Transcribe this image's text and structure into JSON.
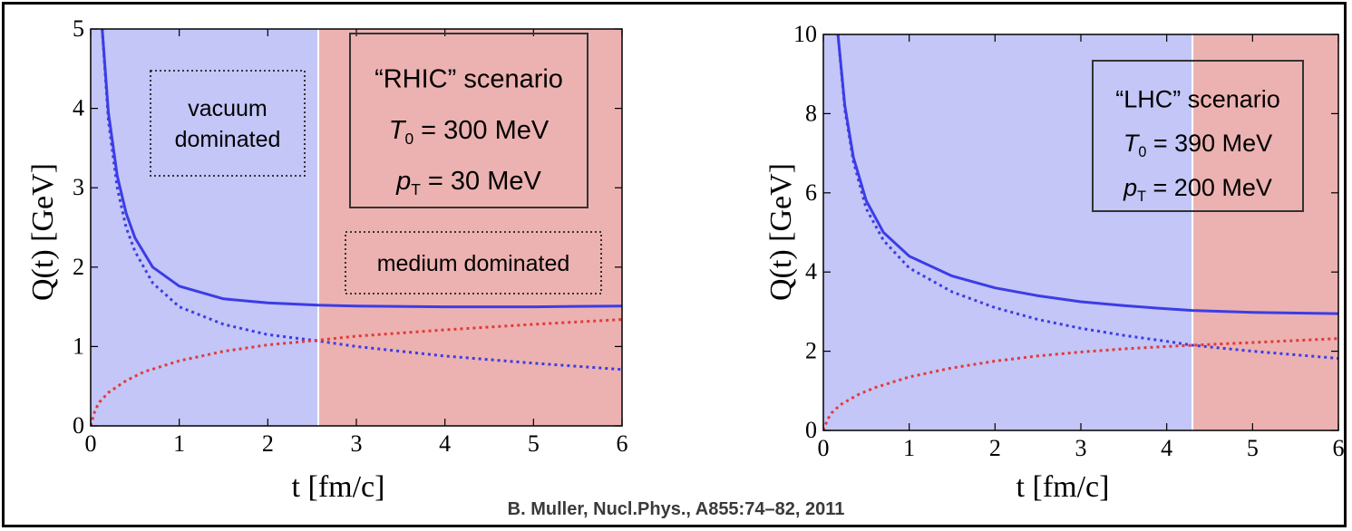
{
  "citation": "B. Muller, Nucl.Phys., A855:74–82, 2011",
  "left_glyph": ")",
  "colors": {
    "vacuum_region": "#c3c6f6",
    "medium_region": "#ecb2b1",
    "vacuum_curve": "#3c3ce6",
    "medium_curve": "#e23a3a"
  },
  "chart_data": [
    {
      "type": "line",
      "title": "",
      "xlabel": "t [fm/c]",
      "ylabel": "Q(t) [GeV]",
      "xlim": [
        0,
        6
      ],
      "ylim": [
        0,
        5
      ],
      "x_ticks": [
        "0",
        "1",
        "2",
        "3",
        "4",
        "5",
        "6"
      ],
      "y_ticks": [
        "0",
        "1",
        "2",
        "3",
        "4",
        "5"
      ],
      "crossover_t": 2.57,
      "regions": [
        {
          "name": "vacuum",
          "from": 0,
          "to": 2.57,
          "color": "#c3c6f6"
        },
        {
          "name": "medium",
          "from": 2.57,
          "to": 6,
          "color": "#ecb2b1"
        }
      ],
      "scenario_box": {
        "line1": "“RHIC” scenario",
        "line2_sym": "T",
        "line2_sub": "0",
        "line2_rest": " = 300 MeV",
        "line3_sym": "p",
        "line3_sub": "T",
        "line3_rest": " = 30 MeV"
      },
      "annotations": [
        {
          "text_lines": [
            "vacuum",
            "dominated"
          ]
        },
        {
          "text_lines": [
            "medium dominated"
          ]
        }
      ],
      "series": [
        {
          "style": "solid",
          "color": "#3c3ce6",
          "x": [
            0.13,
            0.2,
            0.3,
            0.4,
            0.5,
            0.7,
            1.0,
            1.5,
            2.0,
            2.57,
            3.0,
            4.0,
            5.0,
            6.0
          ],
          "y": [
            5.0,
            3.95,
            3.15,
            2.68,
            2.37,
            2.0,
            1.76,
            1.6,
            1.55,
            1.52,
            1.51,
            1.5,
            1.5,
            1.51
          ]
        },
        {
          "style": "dotted",
          "color": "#3c3ce6",
          "x": [
            0.13,
            0.2,
            0.3,
            0.4,
            0.5,
            0.7,
            1.0,
            1.5,
            2.0,
            2.57,
            3.0,
            4.0,
            5.0,
            6.0
          ],
          "y": [
            5.0,
            3.85,
            3.0,
            2.5,
            2.2,
            1.8,
            1.5,
            1.28,
            1.15,
            1.07,
            1.0,
            0.88,
            0.79,
            0.71
          ]
        },
        {
          "style": "dotted",
          "color": "#e23a3a",
          "x": [
            0.0,
            0.05,
            0.1,
            0.2,
            0.4,
            0.6,
            1.0,
            1.5,
            2.0,
            2.57,
            3.0,
            4.0,
            5.0,
            6.0
          ],
          "y": [
            0.0,
            0.2,
            0.3,
            0.42,
            0.57,
            0.68,
            0.82,
            0.94,
            1.02,
            1.08,
            1.13,
            1.21,
            1.28,
            1.34
          ]
        }
      ]
    },
    {
      "type": "line",
      "title": "",
      "xlabel": "t [fm/c]",
      "ylabel": "Q(t) [GeV]",
      "xlim": [
        0,
        6
      ],
      "ylim": [
        0,
        10
      ],
      "x_ticks": [
        "0",
        "1",
        "2",
        "3",
        "4",
        "5",
        "6"
      ],
      "y_ticks": [
        "0",
        "2",
        "4",
        "6",
        "8",
        "10"
      ],
      "crossover_t": 4.3,
      "regions": [
        {
          "name": "vacuum",
          "from": 0,
          "to": 4.3,
          "color": "#c3c6f6"
        },
        {
          "name": "medium",
          "from": 4.3,
          "to": 6,
          "color": "#ecb2b1"
        }
      ],
      "scenario_box": {
        "line1": "“LHC” scenario",
        "line2_sym": "T",
        "line2_sub": "0",
        "line2_rest": " = 390 MeV",
        "line3_sym": "p",
        "line3_sub": "T",
        "line3_rest": " = 200 MeV"
      },
      "annotations": [],
      "series": [
        {
          "style": "solid",
          "color": "#3c3ce6",
          "x": [
            0.17,
            0.25,
            0.35,
            0.5,
            0.7,
            1.0,
            1.5,
            2.0,
            2.5,
            3.0,
            3.5,
            4.0,
            4.3,
            5.0,
            6.0
          ],
          "y": [
            10.0,
            8.2,
            6.9,
            5.8,
            5.0,
            4.4,
            3.9,
            3.6,
            3.4,
            3.25,
            3.15,
            3.07,
            3.03,
            2.98,
            2.95
          ]
        },
        {
          "style": "dotted",
          "color": "#3c3ce6",
          "x": [
            0.17,
            0.25,
            0.35,
            0.5,
            0.7,
            1.0,
            1.5,
            2.0,
            2.5,
            3.0,
            3.5,
            4.0,
            4.3,
            5.0,
            6.0
          ],
          "y": [
            10.0,
            8.1,
            6.8,
            5.6,
            4.8,
            4.1,
            3.5,
            3.1,
            2.8,
            2.58,
            2.4,
            2.25,
            2.15,
            2.0,
            1.82
          ]
        },
        {
          "style": "dotted",
          "color": "#e23a3a",
          "x": [
            0.0,
            0.05,
            0.1,
            0.2,
            0.4,
            0.6,
            1.0,
            1.5,
            2.0,
            2.5,
            3.0,
            3.5,
            4.0,
            4.3,
            5.0,
            6.0
          ],
          "y": [
            0.0,
            0.28,
            0.45,
            0.65,
            0.9,
            1.08,
            1.35,
            1.58,
            1.75,
            1.88,
            1.98,
            2.06,
            2.12,
            2.15,
            2.22,
            2.32
          ]
        }
      ]
    }
  ]
}
